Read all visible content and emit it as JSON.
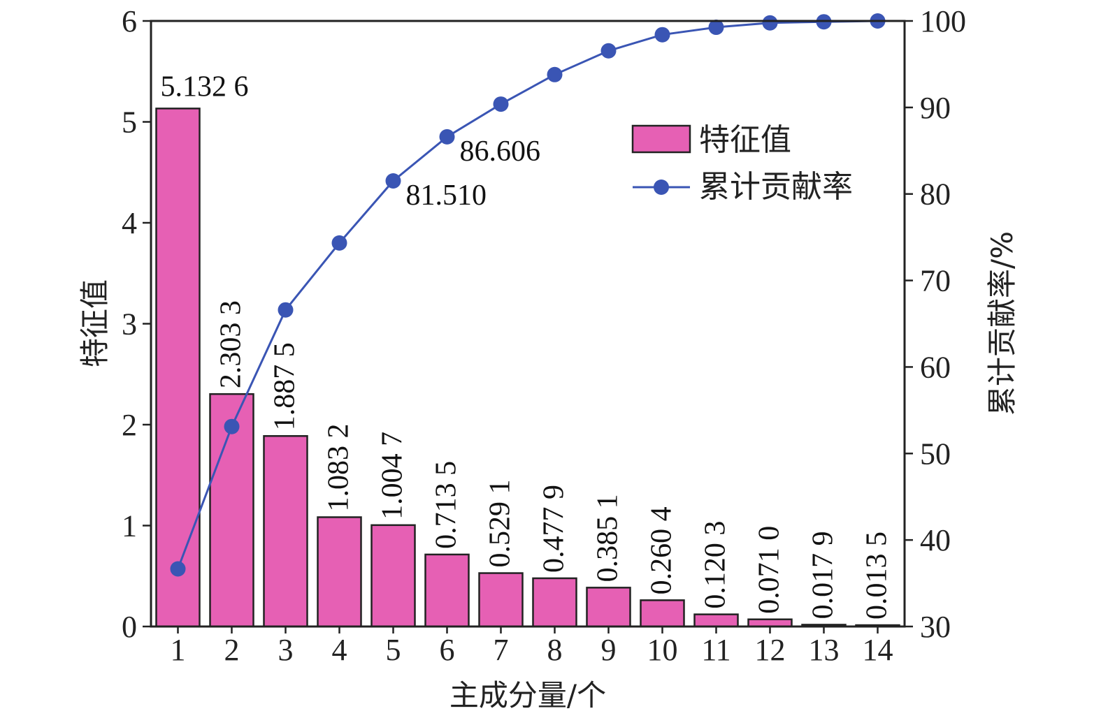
{
  "chart_data": {
    "type": "bar",
    "categories": [
      "1",
      "2",
      "3",
      "4",
      "5",
      "6",
      "7",
      "8",
      "9",
      "10",
      "11",
      "12",
      "13",
      "14"
    ],
    "series": [
      {
        "name": "特征值",
        "type": "bar",
        "axis": "left",
        "color": "#e660b4",
        "values": [
          5.1326,
          2.3033,
          1.8875,
          1.0832,
          1.0047,
          0.7135,
          0.5291,
          0.4779,
          0.3851,
          0.2604,
          0.1203,
          0.071,
          0.0179,
          0.0135
        ],
        "labels": [
          "5.132 6",
          "2.303 3",
          "1.887 5",
          "1.083 2",
          "1.004 7",
          "0.713 5",
          "0.529 1",
          "0.477 9",
          "0.385 1",
          "0.260 4",
          "0.120 3",
          "0.071 0",
          "0.017 9",
          "0.013 5"
        ]
      },
      {
        "name": "累计贡献率",
        "type": "line",
        "axis": "right",
        "color": "#3a55b4",
        "values": [
          36.662,
          53.115,
          66.597,
          74.334,
          81.51,
          86.606,
          90.386,
          93.799,
          96.55,
          98.41,
          99.269,
          99.777,
          99.904,
          100.0
        ],
        "annotations": [
          {
            "index": 4,
            "text": "81.510"
          },
          {
            "index": 5,
            "text": "86.606"
          }
        ]
      }
    ],
    "xlabel": "主成分量/个",
    "ylabel": "特征值",
    "y2label": "累计贡献率/%",
    "ylim": [
      0,
      6
    ],
    "y2lim": [
      30,
      100
    ],
    "yticks": [
      0,
      1,
      2,
      3,
      4,
      5,
      6
    ],
    "y2ticks": [
      30,
      40,
      50,
      60,
      70,
      80,
      90,
      100
    ],
    "grid": false,
    "legend_position": "top-right"
  }
}
